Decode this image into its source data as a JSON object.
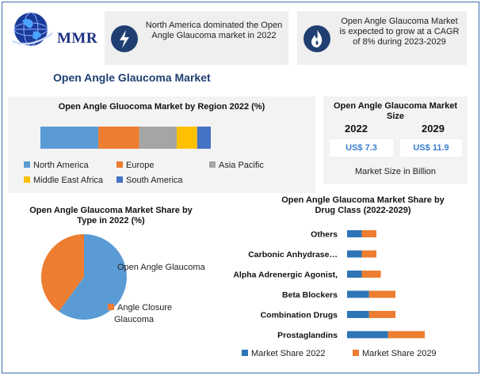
{
  "brand": {
    "logo_text": "MMR"
  },
  "banners": [
    {
      "icon": "lightning-bolt-icon",
      "text_lines": [
        "North America dominated the Open",
        "Angle Glaucoma market in 2022"
      ]
    },
    {
      "icon": "flame-icon",
      "text_lines": [
        "Open Angle Glaucoma Market",
        "is expected to grow at a CAGR",
        "of 8% during 2023-2029"
      ]
    }
  ],
  "main_title": "Open Angle Glaucoma Market",
  "colors": {
    "north_america": "#5b9bd5",
    "europe": "#ed7d31",
    "asia_pacific": "#a5a5a5",
    "middle_east_africa": "#ffc000",
    "south_america": "#4472c4",
    "share_2022": "#2e75b6",
    "share_2029": "#ed7d31",
    "brand_blue": "#1f3f72"
  },
  "market_size": {
    "title_lines": [
      "Open Angle Glaucoma Market",
      "Size"
    ],
    "year_a": "2022",
    "year_b": "2029",
    "value_a": "US$ 7.3",
    "value_b": "US$ 11.9",
    "caption": "Market Size in Billion"
  },
  "chart_data": [
    {
      "type": "bar",
      "orientation": "horizontal-stacked",
      "title": "Open Angle Gluocoma Market by Region 2022 (%)",
      "categories": [
        "North America",
        "Europe",
        "Asia Pacific",
        "Middle East Africa",
        "South America"
      ],
      "values": [
        34,
        24,
        22,
        12,
        8
      ],
      "legend_position": "bottom",
      "grid": false
    },
    {
      "type": "pie",
      "title_lines": [
        "Open Angle Glaucoma Market Share by",
        "Type in 2022 (%)"
      ],
      "labels": [
        "Open Angle Glaucoma",
        "Angle Closure Glaucoma"
      ],
      "legend_lines": [
        [
          "Open Angle Glaucoma"
        ],
        [
          "Angle Closure",
          "Glaucoma"
        ]
      ],
      "values": [
        60,
        40
      ],
      "colors": [
        "#5b9bd5",
        "#ed7d31"
      ],
      "legend_position": "right"
    },
    {
      "type": "bar",
      "orientation": "horizontal-stacked",
      "title_lines": [
        "Open Angle Glaucoma Market Share by",
        "Drug Class (2022-2029)"
      ],
      "categories": [
        "Others",
        "Carbonic Anhydrase…",
        "Alpha Adrenergic Agonist,",
        "Beta Blockers",
        "Combination Drugs",
        "Prostaglandins"
      ],
      "series": [
        {
          "name": "Market Share 2022",
          "values": [
            1.0,
            1.0,
            1.0,
            1.5,
            1.5,
            2.8
          ]
        },
        {
          "name": "Market Share 2029",
          "values": [
            1.0,
            1.0,
            1.3,
            1.8,
            1.8,
            2.5
          ]
        }
      ],
      "legend_position": "bottom",
      "grid": false
    }
  ]
}
